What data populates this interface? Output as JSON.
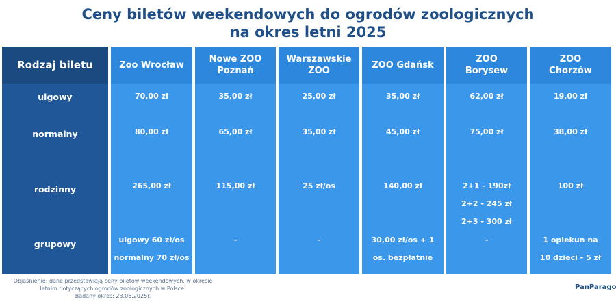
{
  "header": {
    "title_lines": [
      "Ceny biletów weekendowych do ogrodów zoologicznych",
      "na okres letni 2025"
    ]
  },
  "table": {
    "headers": [
      [
        "Rodzaj biletu"
      ],
      [
        "Zoo Wrocław"
      ],
      [
        "Nowe ZOO",
        "Poznań"
      ],
      [
        "Warszawskie",
        "ZOO"
      ],
      [
        "ZOO Gdańsk"
      ],
      [
        "ZOO",
        "Borysew"
      ],
      [
        "ZOO",
        "Chorzów"
      ]
    ],
    "rows": [
      [
        "ulgowy",
        [
          "70,00 zł"
        ],
        [
          "35,00 zł"
        ],
        [
          "25,00 zł"
        ],
        [
          "35,00 zł"
        ],
        [
          "62,00 zł"
        ],
        [
          "19,00 zł"
        ]
      ],
      [
        "normalny",
        [
          "80,00 zł"
        ],
        [
          "65,00 zł"
        ],
        [
          "35,00 zł"
        ],
        [
          "45,00 zł"
        ],
        [
          "75,00 zł"
        ],
        [
          "38,00 zł"
        ]
      ],
      [
        "rodzinny",
        [
          "265,00 zł"
        ],
        [
          "115,00 zł"
        ],
        [
          "25 zł/os"
        ],
        [
          "140,00 zł"
        ],
        [
          "2+1 - 190zł",
          "2+2 - 245 zł",
          "2+3 - 300 zł"
        ],
        [
          "100 zł"
        ]
      ],
      [
        "grupowy",
        [
          "ulgowy 60 zł/os",
          "normalny 70 zł/os"
        ],
        [
          "-"
        ],
        [
          "-"
        ],
        [
          "30,00 zł/os + 1",
          "os. bezpłatnie"
        ],
        [
          "-"
        ],
        [
          "1 opiekun na",
          "10 dzieci - 5 zł"
        ]
      ]
    ]
  },
  "footer": {
    "note_lines": [
      "Objaśnienie: dane przedstawiają ceny biletów weekendowych, w okresie",
      "letnim dotyczących ogrodów zoologicznych w Polsce.",
      "Badany okres: 23.06.2025r."
    ],
    "brand": "PanParagon"
  }
}
